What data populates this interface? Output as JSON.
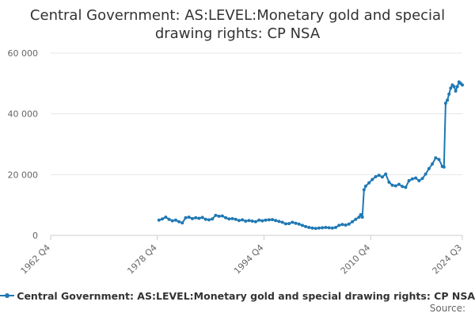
{
  "title_line1": "Central Government: AS:LEVEL:Monetary gold and special",
  "title_line2": "drawing rights: CP NSA",
  "legend_label": "Central Government: AS:LEVEL:Monetary gold and special drawing rights: CP NSA",
  "source_label": "Source:",
  "colors": {
    "series": "#1f78b4",
    "grid": "#e6e6e6",
    "axis_text": "#666666"
  },
  "chart_data": {
    "type": "line",
    "title": "Central Government: AS:LEVEL:Monetary gold and special drawing rights: CP NSA",
    "xlabel": "",
    "ylabel": "",
    "xlim": [
      "1962 Q4",
      "2024 Q3"
    ],
    "ylim": [
      0,
      60000
    ],
    "x_ticks": [
      "1962 Q4",
      "1978 Q4",
      "1994 Q4",
      "2010 Q4",
      "2024 Q3"
    ],
    "y_ticks": [
      0,
      20000,
      40000,
      60000
    ],
    "y_tick_labels": [
      "0",
      "20 000",
      "40 000",
      "60 000"
    ],
    "grid": "horizontal",
    "legend": "bottom",
    "series": [
      {
        "name": "Central Government: AS:LEVEL:Monetary gold and special drawing rights: CP NSA",
        "points": [
          [
            "1979 Q1",
            5000
          ],
          [
            "1979 Q3",
            5400
          ],
          [
            "1980 Q1",
            6000
          ],
          [
            "1980 Q3",
            5300
          ],
          [
            "1981 Q1",
            4800
          ],
          [
            "1981 Q3",
            5000
          ],
          [
            "1982 Q1",
            4500
          ],
          [
            "1982 Q3",
            4100
          ],
          [
            "1983 Q1",
            5800
          ],
          [
            "1983 Q3",
            6000
          ],
          [
            "1984 Q1",
            5500
          ],
          [
            "1984 Q3",
            5800
          ],
          [
            "1985 Q1",
            5600
          ],
          [
            "1985 Q3",
            5900
          ],
          [
            "1986 Q1",
            5300
          ],
          [
            "1986 Q3",
            5100
          ],
          [
            "1987 Q1",
            5400
          ],
          [
            "1987 Q3",
            6600
          ],
          [
            "1988 Q1",
            6300
          ],
          [
            "1988 Q3",
            6400
          ],
          [
            "1989 Q1",
            5800
          ],
          [
            "1989 Q3",
            5400
          ],
          [
            "1990 Q1",
            5500
          ],
          [
            "1990 Q3",
            5300
          ],
          [
            "1991 Q1",
            4900
          ],
          [
            "1991 Q3",
            5100
          ],
          [
            "1992 Q1",
            4700
          ],
          [
            "1992 Q3",
            4900
          ],
          [
            "1993 Q1",
            4700
          ],
          [
            "1993 Q3",
            4500
          ],
          [
            "1994 Q1",
            5000
          ],
          [
            "1994 Q3",
            4800
          ],
          [
            "1995 Q1",
            5000
          ],
          [
            "1995 Q3",
            5100
          ],
          [
            "1996 Q1",
            5200
          ],
          [
            "1996 Q3",
            4900
          ],
          [
            "1997 Q1",
            4600
          ],
          [
            "1997 Q3",
            4300
          ],
          [
            "1998 Q1",
            3800
          ],
          [
            "1998 Q3",
            3900
          ],
          [
            "1999 Q1",
            4300
          ],
          [
            "1999 Q3",
            4000
          ],
          [
            "2000 Q1",
            3700
          ],
          [
            "2000 Q3",
            3300
          ],
          [
            "2001 Q1",
            2900
          ],
          [
            "2001 Q3",
            2600
          ],
          [
            "2002 Q1",
            2400
          ],
          [
            "2002 Q3",
            2300
          ],
          [
            "2003 Q1",
            2400
          ],
          [
            "2003 Q3",
            2500
          ],
          [
            "2004 Q1",
            2600
          ],
          [
            "2004 Q3",
            2500
          ],
          [
            "2005 Q1",
            2400
          ],
          [
            "2005 Q3",
            2600
          ],
          [
            "2006 Q1",
            3300
          ],
          [
            "2006 Q3",
            3600
          ],
          [
            "2007 Q1",
            3400
          ],
          [
            "2007 Q3",
            3700
          ],
          [
            "2008 Q1",
            4500
          ],
          [
            "2008 Q3",
            5300
          ],
          [
            "2009 Q1",
            6000
          ],
          [
            "2009 Q2",
            6800
          ],
          [
            "2009 Q3",
            6000
          ],
          [
            "2009 Q4",
            15000
          ],
          [
            "2010 Q1",
            16200
          ],
          [
            "2010 Q3",
            17300
          ],
          [
            "2011 Q1",
            18400
          ],
          [
            "2011 Q3",
            19300
          ],
          [
            "2012 Q1",
            19800
          ],
          [
            "2012 Q3",
            19200
          ],
          [
            "2013 Q1",
            20200
          ],
          [
            "2013 Q3",
            17500
          ],
          [
            "2014 Q1",
            16500
          ],
          [
            "2014 Q3",
            16300
          ],
          [
            "2015 Q1",
            16800
          ],
          [
            "2015 Q3",
            16100
          ],
          [
            "2016 Q1",
            15800
          ],
          [
            "2016 Q3",
            18000
          ],
          [
            "2017 Q1",
            18600
          ],
          [
            "2017 Q3",
            18900
          ],
          [
            "2018 Q1",
            18000
          ],
          [
            "2018 Q3",
            18700
          ],
          [
            "2019 Q1",
            20200
          ],
          [
            "2019 Q3",
            22000
          ],
          [
            "2020 Q1",
            23500
          ],
          [
            "2020 Q3",
            25500
          ],
          [
            "2021 Q1",
            25000
          ],
          [
            "2021 Q3",
            22700
          ],
          [
            "2021 Q4",
            22500
          ],
          [
            "2022 Q1",
            43500
          ],
          [
            "2022 Q2",
            44500
          ],
          [
            "2022 Q3",
            46500
          ],
          [
            "2022 Q4",
            48500
          ],
          [
            "2023 Q1",
            49500
          ],
          [
            "2023 Q2",
            49000
          ],
          [
            "2023 Q3",
            47500
          ],
          [
            "2023 Q4",
            49000
          ],
          [
            "2024 Q1",
            50500
          ],
          [
            "2024 Q2",
            50000
          ],
          [
            "2024 Q3",
            49500
          ]
        ]
      }
    ]
  }
}
